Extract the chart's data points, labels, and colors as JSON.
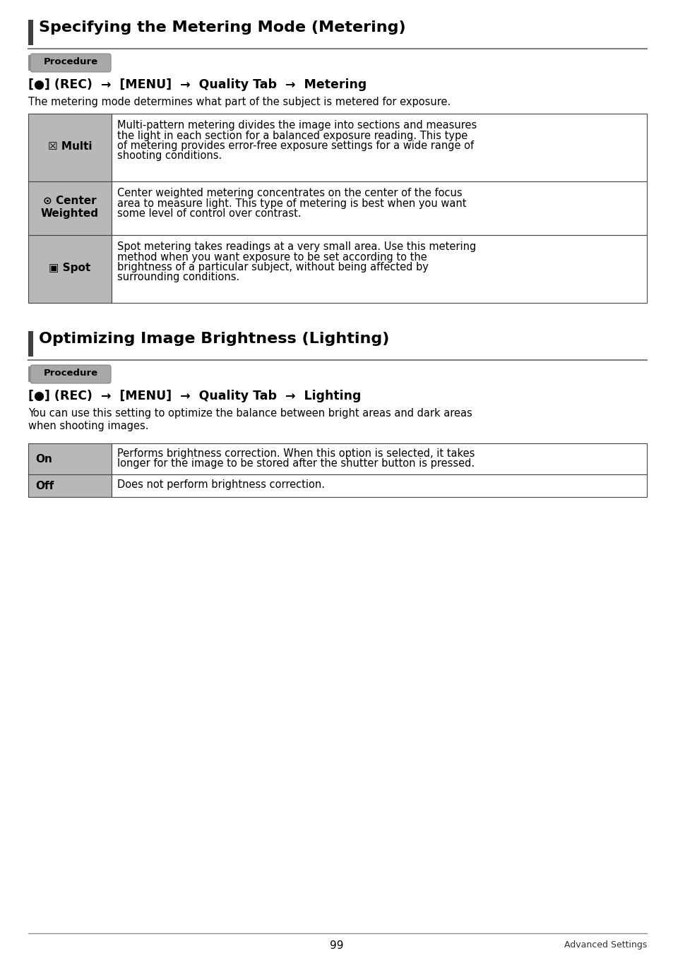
{
  "bg_color": "#ffffff",
  "section1_title": "Specifying the Metering Mode (Metering)",
  "section2_title": "Optimizing Image Brightness (Lighting)",
  "procedure_label": "Procedure",
  "section1_nav": "[cam] (REC)  →  [MENU]  →  Quality Tab  →  Metering",
  "section2_nav": "[cam] (REC)  →  [MENU]  →  Quality Tab  →  Lighting",
  "section1_desc": "The metering mode determines what part of the subject is metered for exposure.",
  "section2_desc": "You can use this setting to optimize the balance between bright areas and dark areas\nwhen shooting images.",
  "metering_rows": [
    {
      "label_lines": [
        "☒ Multi"
      ],
      "text_lines": [
        "Multi-pattern metering divides the image into sections and measures",
        "the light in each section for a balanced exposure reading. This type",
        "of metering provides error-free exposure settings for a wide range of",
        "shooting conditions."
      ]
    },
    {
      "label_lines": [
        "⊙ Center",
        "Weighted"
      ],
      "text_lines": [
        "Center weighted metering concentrates on the center of the focus",
        "area to measure light. This type of metering is best when you want",
        "some level of control over contrast."
      ]
    },
    {
      "label_lines": [
        "▣ Spot"
      ],
      "text_lines": [
        "Spot metering takes readings at a very small area. Use this metering",
        "method when you want exposure to be set according to the",
        "brightness of a particular subject, without being affected by",
        "surrounding conditions."
      ]
    }
  ],
  "lighting_rows": [
    {
      "label_lines": [
        "On"
      ],
      "text_lines": [
        "Performs brightness correction. When this option is selected, it takes",
        "longer for the image to be stored after the shutter button is pressed."
      ]
    },
    {
      "label_lines": [
        "Off"
      ],
      "text_lines": [
        "Does not perform brightness correction."
      ]
    }
  ],
  "footer_page": "99",
  "footer_right": "Advanced Settings",
  "gray_bar_color": "#808080",
  "dark_bar_color": "#333333",
  "procedure_bg": "#a0a0a0",
  "table_left_bg": "#b8b8b8",
  "table_border_color": "#555555"
}
